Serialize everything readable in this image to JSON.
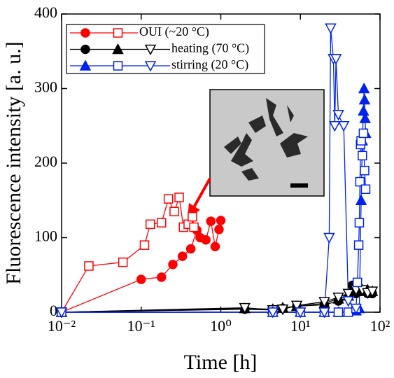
{
  "chart_data": {
    "type": "line",
    "xlabel": "Time [h]",
    "ylabel": "Fluorescence intensity [a. u.]",
    "xscale": "log",
    "xlim": [
      0.01,
      100
    ],
    "ylim": [
      0,
      400
    ],
    "xticks": [
      {
        "value": 0.01,
        "label": "10⁻²"
      },
      {
        "value": 0.1,
        "label": "10⁻¹"
      },
      {
        "value": 1,
        "label": "10⁰"
      },
      {
        "value": 10,
        "label": "10¹"
      },
      {
        "value": 100,
        "label": "10²"
      }
    ],
    "yticks": [
      0,
      100,
      200,
      300,
      400
    ],
    "legend": "upper left",
    "series": [
      {
        "name": "OUI (~20 °C)",
        "color": "#ff0000",
        "parts": [
          {
            "marker": "circle",
            "filled": true,
            "x": [
              0.01,
              0.1,
              0.18,
              0.25,
              0.33,
              0.42,
              0.5,
              0.55,
              0.65,
              0.75,
              0.85,
              0.95,
              1.0
            ],
            "values": [
              0,
              44,
              47,
              64,
              75,
              85,
              110,
              100,
              97,
              122,
              88,
              111,
              123
            ]
          },
          {
            "marker": "square",
            "filled": false,
            "x": [
              0.01,
              0.022,
              0.059,
              0.11,
              0.13,
              0.18,
              0.22,
              0.26,
              0.3,
              0.34,
              0.39,
              0.44,
              0.46
            ],
            "values": [
              0,
              62,
              67,
              90,
              118,
              120,
              152,
              135,
              154,
              114,
              118,
              128,
              114
            ]
          }
        ]
      },
      {
        "name": "heating (70 °C)",
        "color": "#000000",
        "parts": [
          {
            "marker": "circle",
            "filled": true,
            "x": [
              0.01,
              2,
              4.5,
              6,
              9,
              20,
              30,
              40,
              45,
              50,
              60,
              70,
              80
            ],
            "values": [
              0,
              4,
              3,
              5,
              8,
              10,
              15,
              20,
              36,
              25,
              28,
              25,
              25
            ]
          },
          {
            "marker": "triangle-up",
            "filled": true,
            "x": [
              0.01,
              2,
              4.5,
              6,
              9,
              20,
              30,
              40,
              50,
              60,
              70,
              80
            ],
            "values": [
              0,
              5,
              4,
              6,
              8,
              12,
              18,
              22,
              28,
              30,
              30,
              28
            ]
          },
          {
            "marker": "triangle-down",
            "filled": false,
            "x": [
              0.01,
              2,
              4.5,
              6,
              9,
              20,
              30,
              40,
              50,
              60,
              70,
              80
            ],
            "values": [
              0,
              6,
              3,
              4,
              9,
              14,
              20,
              25,
              30,
              30,
              26,
              28
            ]
          }
        ]
      },
      {
        "name": "stirring (20 °C)",
        "color": "#0022ee",
        "parts": [
          {
            "marker": "triangle-up",
            "filled": true,
            "x": [
              0.01,
              4.5,
              10,
              20,
              30,
              50,
              55,
              58,
              60,
              62,
              63,
              64,
              65,
              66
            ],
            "values": [
              0,
              0,
              0,
              0,
              0,
              2,
              5,
              150,
              230,
              270,
              300,
              285,
              260,
              240
            ]
          },
          {
            "marker": "square",
            "filled": false,
            "x": [
              0.01,
              4.5,
              10,
              20,
              30,
              40,
              50,
              52,
              54,
              55,
              56,
              57,
              58,
              60,
              62,
              64,
              66
            ],
            "values": [
              0,
              0,
              0,
              0,
              0,
              0,
              5,
              40,
              90,
              120,
              175,
              225,
              230,
              210,
              240,
              190,
              165
            ]
          },
          {
            "marker": "triangle-down",
            "filled": false,
            "x": [
              0.01,
              4.5,
              10,
              20,
              23,
              24,
              26,
              27,
              28,
              30,
              35,
              40,
              50
            ],
            "values": [
              0,
              0,
              0,
              0,
              100,
              381,
              340,
              250,
              340,
              265,
              250,
              15,
              5
            ]
          }
        ]
      }
    ]
  }
}
